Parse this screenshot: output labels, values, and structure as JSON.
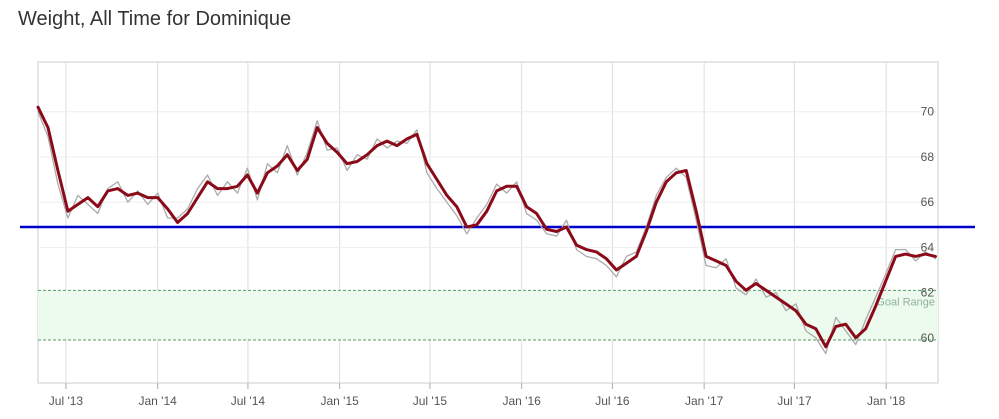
{
  "chart_data": {
    "type": "line",
    "title": "Weight, All Time for Dominique",
    "xlabel": "",
    "ylabel": "",
    "x_range": [
      "2013-05-06",
      "2018-04-15"
    ],
    "ylim": [
      58.0,
      72.2
    ],
    "grid": true,
    "x_ticks": [
      {
        "date": "2013-07-01",
        "label": "Jul '13"
      },
      {
        "date": "2014-01-01",
        "label": "Jan '14"
      },
      {
        "date": "2014-07-01",
        "label": "Jul '14"
      },
      {
        "date": "2015-01-01",
        "label": "Jan '15"
      },
      {
        "date": "2015-07-01",
        "label": "Jul '15"
      },
      {
        "date": "2016-01-01",
        "label": "Jan '16"
      },
      {
        "date": "2016-07-01",
        "label": "Jul '16"
      },
      {
        "date": "2017-01-01",
        "label": "Jan '17"
      },
      {
        "date": "2017-07-01",
        "label": "Jul '17"
      },
      {
        "date": "2018-01-01",
        "label": "Jan '18"
      }
    ],
    "y_ticks": [
      60,
      62,
      64,
      66,
      68,
      70
    ],
    "target_line": {
      "value": 64.9,
      "color": "#0000cc"
    },
    "goal_range": {
      "label": "Goal Range",
      "from": 59.9,
      "to": 62.1,
      "fill": "#edfbef",
      "border": "#5a9a6a"
    },
    "series": [
      {
        "color": "#8b0a1a",
        "x": [
          "2013-05-06",
          "2013-05-26",
          "2013-06-15",
          "2013-07-05",
          "2013-07-25",
          "2013-08-14",
          "2013-09-03",
          "2013-09-23",
          "2013-10-13",
          "2013-11-02",
          "2013-11-22",
          "2013-12-12",
          "2014-01-01",
          "2014-01-21",
          "2014-02-10",
          "2014-03-02",
          "2014-03-22",
          "2014-04-11",
          "2014-05-01",
          "2014-05-21",
          "2014-06-10",
          "2014-06-30",
          "2014-07-20",
          "2014-08-09",
          "2014-08-29",
          "2014-09-18",
          "2014-10-08",
          "2014-10-28",
          "2014-11-17",
          "2014-12-07",
          "2014-12-27",
          "2015-01-16",
          "2015-02-05",
          "2015-02-25",
          "2015-03-17",
          "2015-04-06",
          "2015-04-26",
          "2015-05-16",
          "2015-06-05",
          "2015-06-25",
          "2015-07-15",
          "2015-08-04",
          "2015-08-24",
          "2015-09-13",
          "2015-10-03",
          "2015-10-23",
          "2015-11-12",
          "2015-12-02",
          "2015-12-22",
          "2016-01-11",
          "2016-01-31",
          "2016-02-20",
          "2016-03-11",
          "2016-03-31",
          "2016-04-20",
          "2016-05-10",
          "2016-05-30",
          "2016-06-19",
          "2016-07-09",
          "2016-07-29",
          "2016-08-18",
          "2016-09-07",
          "2016-09-27",
          "2016-10-17",
          "2016-11-06",
          "2016-11-26",
          "2016-12-16",
          "2017-01-05",
          "2017-01-25",
          "2017-02-14",
          "2017-03-06",
          "2017-03-26",
          "2017-04-15",
          "2017-05-05",
          "2017-05-25",
          "2017-06-14",
          "2017-07-04",
          "2017-07-24",
          "2017-08-13",
          "2017-09-02",
          "2017-09-22",
          "2017-10-12",
          "2017-11-01",
          "2017-11-21",
          "2017-12-11",
          "2017-12-31",
          "2018-01-20",
          "2018-02-09",
          "2018-03-01",
          "2018-03-21",
          "2018-04-10"
        ],
        "values": [
          70.2,
          69.3,
          67.4,
          65.6,
          65.9,
          66.2,
          65.8,
          66.5,
          66.6,
          66.3,
          66.4,
          66.2,
          66.2,
          65.7,
          65.1,
          65.5,
          66.2,
          66.9,
          66.6,
          66.6,
          66.7,
          67.2,
          66.4,
          67.3,
          67.6,
          68.1,
          67.4,
          67.9,
          69.3,
          68.6,
          68.2,
          67.7,
          67.8,
          68.1,
          68.5,
          68.7,
          68.5,
          68.8,
          69.0,
          67.7,
          67.0,
          66.3,
          65.8,
          64.9,
          65.0,
          65.6,
          66.5,
          66.7,
          66.7,
          65.8,
          65.5,
          64.8,
          64.7,
          64.9,
          64.1,
          63.9,
          63.8,
          63.5,
          63.0,
          63.3,
          63.6,
          64.7,
          66.0,
          66.9,
          67.3,
          67.4,
          65.6,
          63.6,
          63.4,
          63.2,
          62.5,
          62.1,
          62.4,
          62.1,
          61.8,
          61.5,
          61.2,
          60.6,
          60.4,
          59.6,
          60.5,
          60.6,
          60.0,
          60.4,
          61.4,
          62.5,
          63.6,
          63.7,
          63.6,
          63.7,
          63.6
        ]
      },
      {
        "color": "#aaaaaa",
        "x": [
          "2013-05-06",
          "2013-05-26",
          "2013-06-15",
          "2013-07-05",
          "2013-07-25",
          "2013-08-14",
          "2013-09-03",
          "2013-09-23",
          "2013-10-13",
          "2013-11-02",
          "2013-11-22",
          "2013-12-12",
          "2014-01-01",
          "2014-01-21",
          "2014-02-10",
          "2014-03-02",
          "2014-03-22",
          "2014-04-11",
          "2014-05-01",
          "2014-05-21",
          "2014-06-10",
          "2014-06-30",
          "2014-07-20",
          "2014-08-09",
          "2014-08-29",
          "2014-09-18",
          "2014-10-08",
          "2014-10-28",
          "2014-11-17",
          "2014-12-07",
          "2014-12-27",
          "2015-01-16",
          "2015-02-05",
          "2015-02-25",
          "2015-03-17",
          "2015-04-06",
          "2015-04-26",
          "2015-05-16",
          "2015-06-05",
          "2015-06-25",
          "2015-07-15",
          "2015-08-04",
          "2015-08-24",
          "2015-09-13",
          "2015-10-03",
          "2015-10-23",
          "2015-11-12",
          "2015-12-02",
          "2015-12-22",
          "2016-01-11",
          "2016-01-31",
          "2016-02-20",
          "2016-03-11",
          "2016-03-31",
          "2016-04-20",
          "2016-05-10",
          "2016-05-30",
          "2016-06-19",
          "2016-07-09",
          "2016-07-29",
          "2016-08-18",
          "2016-09-07",
          "2016-09-27",
          "2016-10-17",
          "2016-11-06",
          "2016-11-26",
          "2016-12-16",
          "2017-01-05",
          "2017-01-25",
          "2017-02-14",
          "2017-03-06",
          "2017-03-26",
          "2017-04-15",
          "2017-05-05",
          "2017-05-25",
          "2017-06-14",
          "2017-07-04",
          "2017-07-24",
          "2017-08-13",
          "2017-09-02",
          "2017-09-22",
          "2017-10-12",
          "2017-11-01",
          "2017-11-21",
          "2017-12-11",
          "2017-12-31",
          "2018-01-20",
          "2018-02-09",
          "2018-03-01",
          "2018-03-21",
          "2018-04-10"
        ],
        "values": [
          70.0,
          68.9,
          66.8,
          65.3,
          66.3,
          65.9,
          65.5,
          66.6,
          66.9,
          66.0,
          66.5,
          65.9,
          66.4,
          65.3,
          65.3,
          65.7,
          66.6,
          67.2,
          66.3,
          66.9,
          66.4,
          67.5,
          66.1,
          67.7,
          67.3,
          68.5,
          67.2,
          68.2,
          69.6,
          68.3,
          68.4,
          67.4,
          68.1,
          67.9,
          68.8,
          68.4,
          68.7,
          68.6,
          69.2,
          67.3,
          66.6,
          66.0,
          65.4,
          64.6,
          65.3,
          65.9,
          66.8,
          66.4,
          66.9,
          65.5,
          65.2,
          64.6,
          64.5,
          65.2,
          63.9,
          63.6,
          63.5,
          63.2,
          62.7,
          63.6,
          63.8,
          64.9,
          66.3,
          67.1,
          67.5,
          67.1,
          65.2,
          63.2,
          63.1,
          63.5,
          62.2,
          61.9,
          62.6,
          61.8,
          62.0,
          61.2,
          61.5,
          60.3,
          60.0,
          59.3,
          60.9,
          60.3,
          59.7,
          60.8,
          61.8,
          62.8,
          63.9,
          63.9,
          63.4,
          63.8,
          63.5
        ]
      }
    ]
  }
}
